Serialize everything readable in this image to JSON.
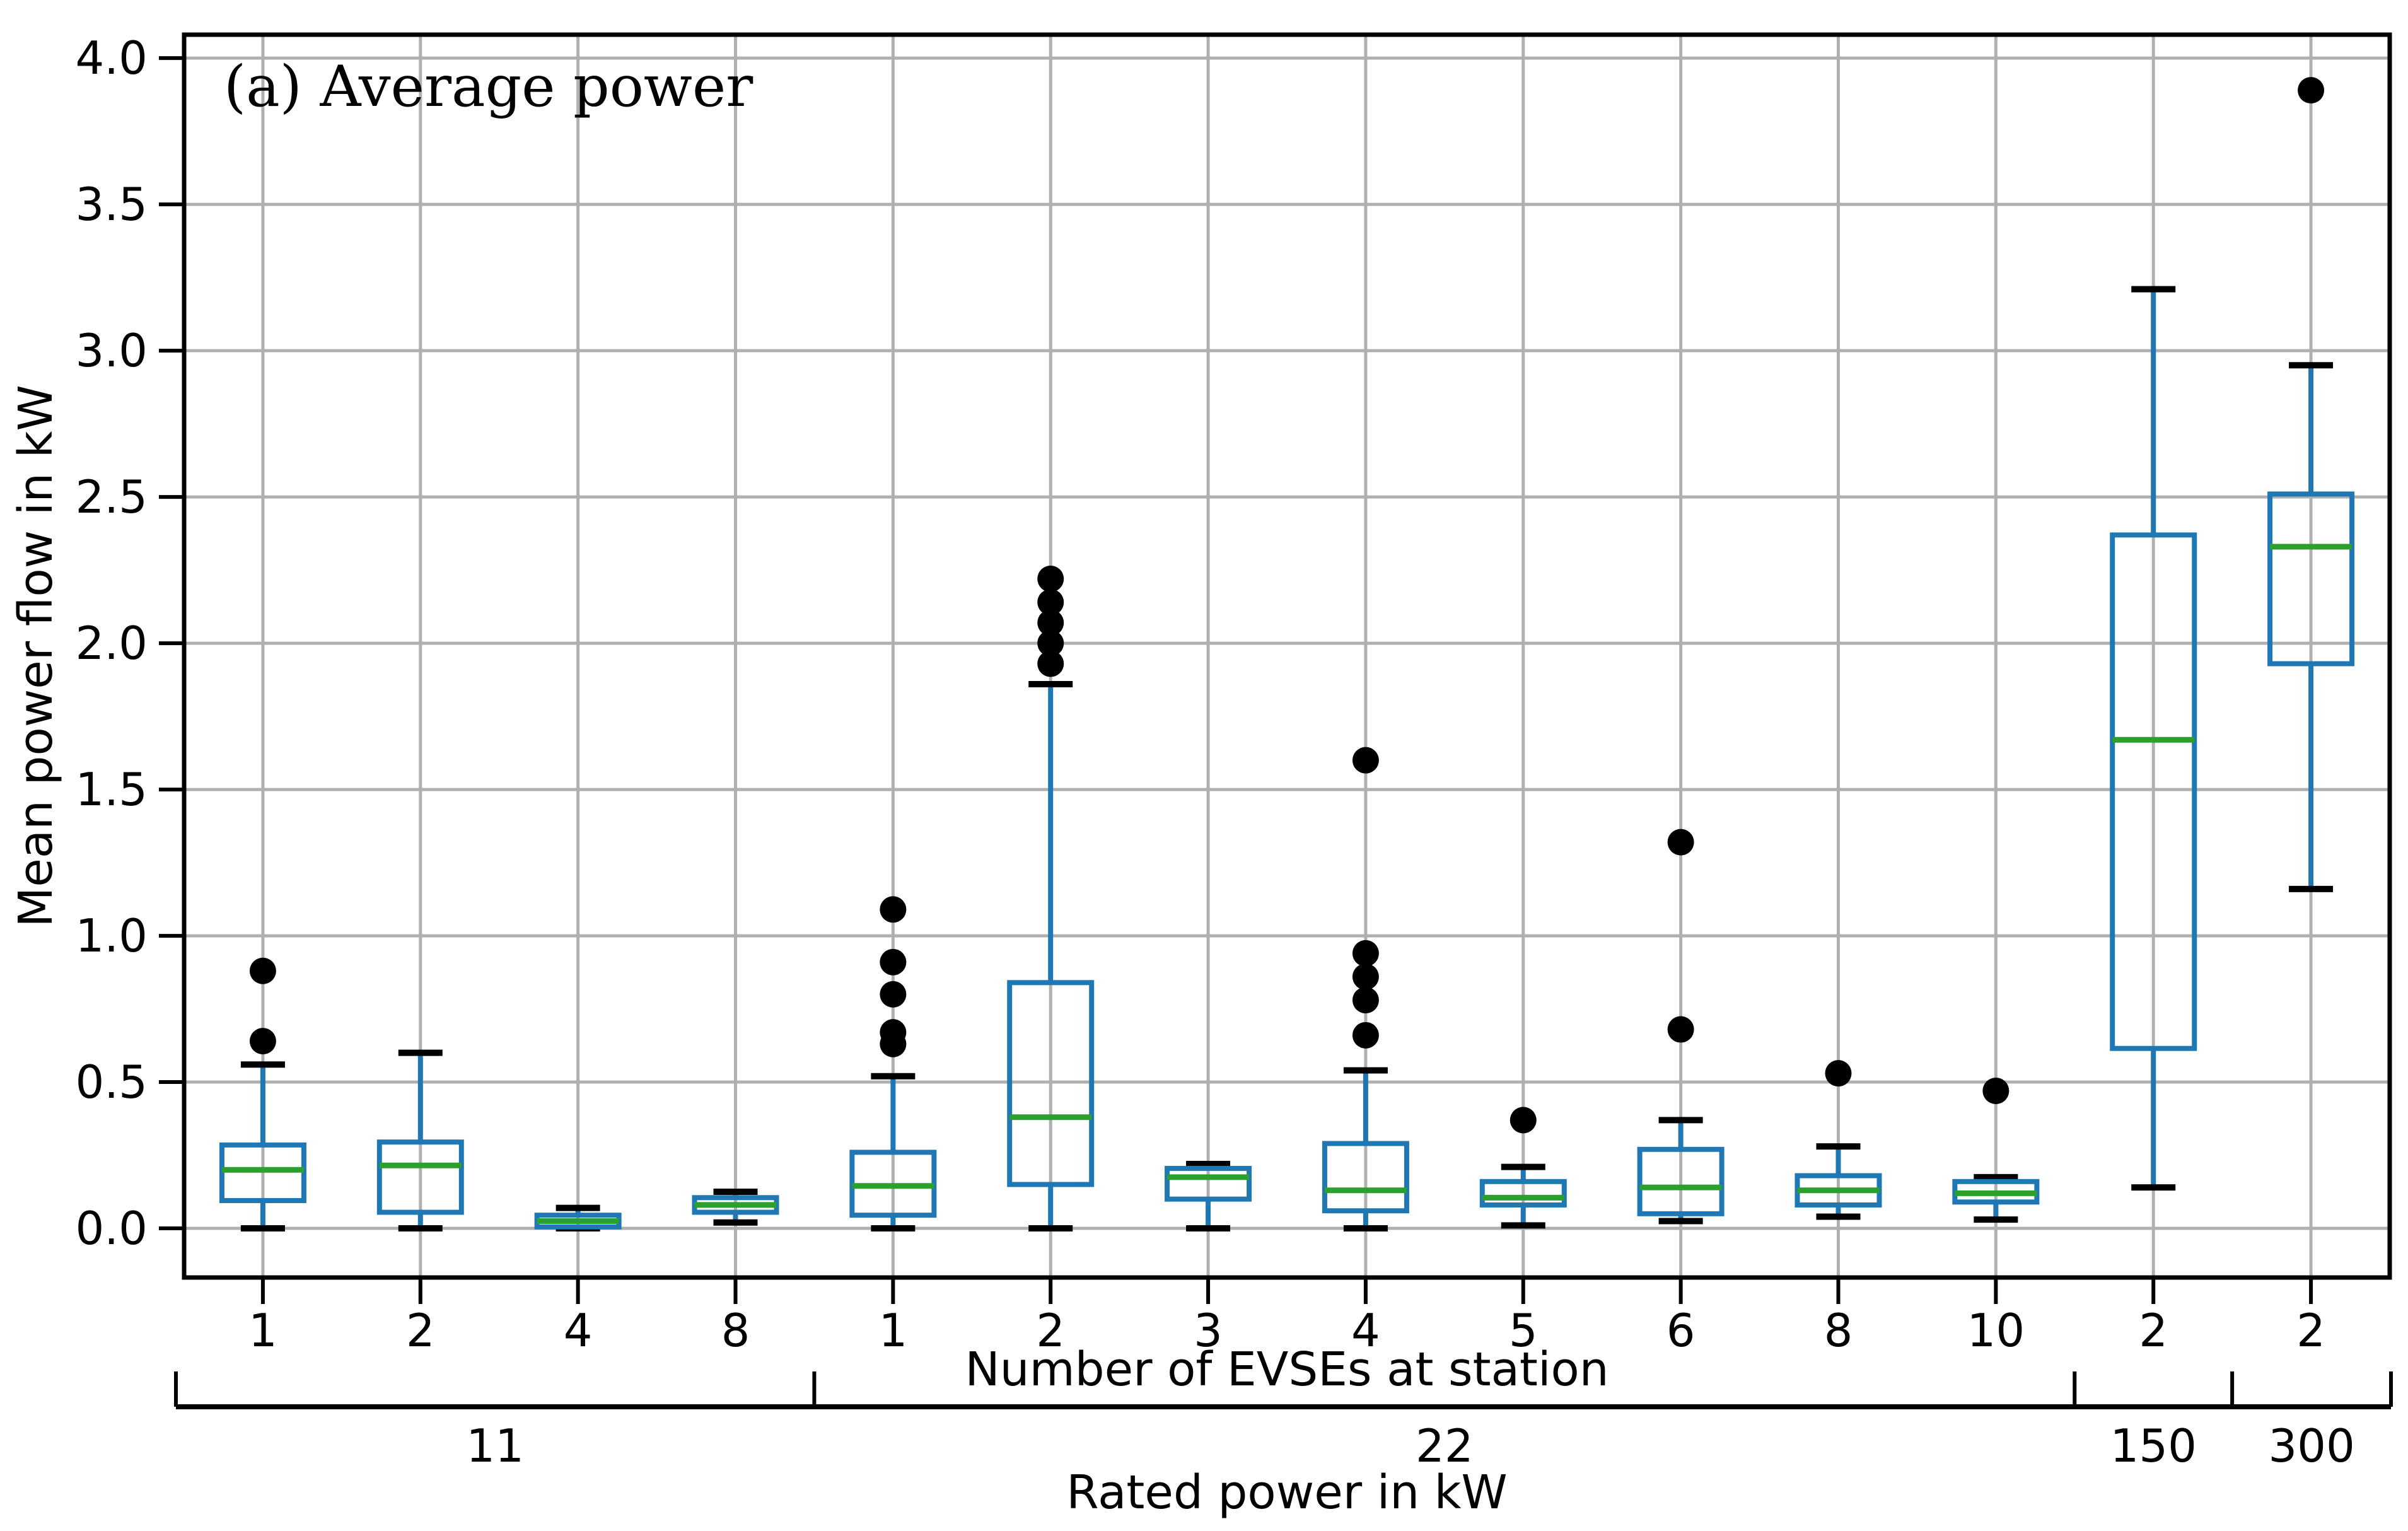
{
  "figure": {
    "background": "#ffffff",
    "title_annotation": "(a) Average power"
  },
  "chart_data": {
    "type": "box",
    "title": "(a) Average power",
    "ylabel": "Mean power flow in kW",
    "xlabel": "Number of EVSEs at station",
    "secondary_xlabel": "Rated power in kW",
    "ylim": [
      -0.168,
      4.08
    ],
    "yticks": [
      0.0,
      0.5,
      1.0,
      1.5,
      2.0,
      2.5,
      3.0,
      3.5,
      4.0
    ],
    "ytick_labels": [
      "0.0",
      "0.5",
      "1.0",
      "1.5",
      "2.0",
      "2.5",
      "3.0",
      "3.5",
      "4.0"
    ],
    "grid": true,
    "legend_position": "none",
    "categories": [
      "1",
      "2",
      "4",
      "8",
      "1",
      "2",
      "3",
      "4",
      "5",
      "6",
      "8",
      "10",
      "2",
      "2"
    ],
    "boxes": [
      {
        "evse": "1",
        "rated_power": "11",
        "whislo": 0.0,
        "q1": 0.095,
        "med": 0.2,
        "q3": 0.285,
        "whishi": 0.56,
        "fliers": [
          0.64,
          0.88
        ]
      },
      {
        "evse": "2",
        "rated_power": "11",
        "whislo": 0.0,
        "q1": 0.055,
        "med": 0.215,
        "q3": 0.295,
        "whishi": 0.6,
        "fliers": []
      },
      {
        "evse": "4",
        "rated_power": "11",
        "whislo": 0.0,
        "q1": 0.005,
        "med": 0.025,
        "q3": 0.045,
        "whishi": 0.07,
        "fliers": []
      },
      {
        "evse": "8",
        "rated_power": "11",
        "whislo": 0.02,
        "q1": 0.055,
        "med": 0.08,
        "q3": 0.105,
        "whishi": 0.125,
        "fliers": []
      },
      {
        "evse": "1",
        "rated_power": "22",
        "whislo": 0.0,
        "q1": 0.045,
        "med": 0.145,
        "q3": 0.26,
        "whishi": 0.52,
        "fliers": [
          0.63,
          0.67,
          0.8,
          0.91,
          1.09
        ]
      },
      {
        "evse": "2",
        "rated_power": "22",
        "whislo": 0.0,
        "q1": 0.15,
        "med": 0.38,
        "q3": 0.84,
        "whishi": 1.86,
        "fliers": [
          1.93,
          2.0,
          2.07,
          2.14,
          2.22
        ]
      },
      {
        "evse": "3",
        "rated_power": "22",
        "whislo": 0.0,
        "q1": 0.1,
        "med": 0.175,
        "q3": 0.205,
        "whishi": 0.22,
        "fliers": []
      },
      {
        "evse": "4",
        "rated_power": "22",
        "whislo": 0.0,
        "q1": 0.06,
        "med": 0.13,
        "q3": 0.29,
        "whishi": 0.54,
        "fliers": [
          0.66,
          0.78,
          0.86,
          0.94,
          1.6
        ]
      },
      {
        "evse": "5",
        "rated_power": "22",
        "whislo": 0.01,
        "q1": 0.08,
        "med": 0.105,
        "q3": 0.16,
        "whishi": 0.21,
        "fliers": [
          0.37
        ]
      },
      {
        "evse": "6",
        "rated_power": "22",
        "whislo": 0.025,
        "q1": 0.05,
        "med": 0.14,
        "q3": 0.27,
        "whishi": 0.37,
        "fliers": [
          0.68,
          1.32
        ]
      },
      {
        "evse": "8",
        "rated_power": "22",
        "whislo": 0.04,
        "q1": 0.08,
        "med": 0.13,
        "q3": 0.18,
        "whishi": 0.28,
        "fliers": [
          0.53
        ]
      },
      {
        "evse": "10",
        "rated_power": "22",
        "whislo": 0.03,
        "q1": 0.09,
        "med": 0.12,
        "q3": 0.16,
        "whishi": 0.175,
        "fliers": [
          0.47
        ]
      },
      {
        "evse": "2",
        "rated_power": "150",
        "whislo": 0.14,
        "q1": 0.615,
        "med": 1.67,
        "q3": 2.37,
        "whishi": 3.21,
        "fliers": []
      },
      {
        "evse": "2",
        "rated_power": "300",
        "whislo": 1.16,
        "q1": 1.93,
        "med": 2.33,
        "q3": 2.51,
        "whishi": 2.95,
        "fliers": [
          3.89
        ]
      }
    ],
    "rated_power_spans": [
      {
        "label": "11",
        "from": 1,
        "to": 4
      },
      {
        "label": "22",
        "from": 5,
        "to": 12
      },
      {
        "label": "150",
        "from": 13,
        "to": 13
      },
      {
        "label": "300",
        "from": 14,
        "to": 14
      }
    ],
    "colors": {
      "box": "#1f77b4",
      "whisker": "#1f77b4",
      "median": "#2ca02c",
      "cap": "#000000",
      "flier": "#000000",
      "grid": "#b0b0b0",
      "spine": "#000000",
      "text": "#000000"
    }
  }
}
